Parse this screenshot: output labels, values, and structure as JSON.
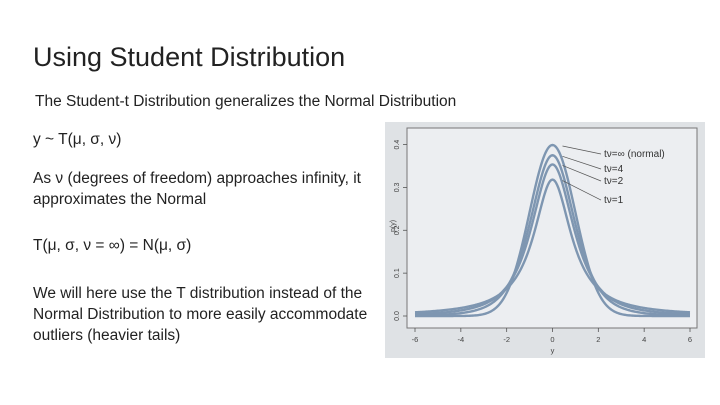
{
  "slide": {
    "title": "Using Student Distribution",
    "subtitle": "The Student-t Distribution generalizes the Normal Distribution",
    "bullets": [
      "y ~ T(μ, σ, ν)",
      "As ν (degrees of freedom) approaches infinity, it approximates the Normal",
      "T(μ, σ, ν = ∞) = N(μ, σ)",
      "We will here use the T distribution instead of the Normal Distribution to more easily accommodate outliers (heavier tails)"
    ]
  },
  "figure": {
    "ylabel": "p(y)",
    "xlabel": "y",
    "yticks": [
      "0.0",
      "0.1",
      "0.2",
      "0.3",
      "0.4"
    ],
    "xticks": [
      "-6",
      "-4",
      "-2",
      "0",
      "2",
      "4",
      "6"
    ],
    "legend": [
      "tν=∞ (normal)",
      "tν=4",
      "tν=2",
      "tν=1"
    ],
    "df_values": [
      "inf",
      4,
      2,
      1
    ]
  }
}
